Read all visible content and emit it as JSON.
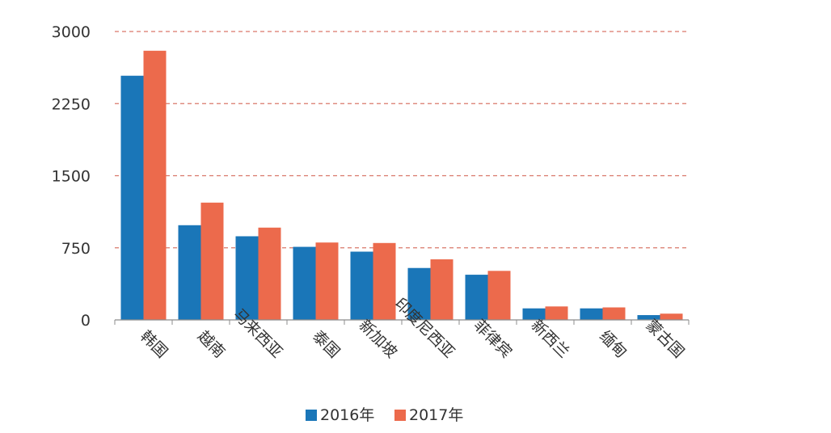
{
  "chart_data": {
    "type": "bar",
    "title": "",
    "xlabel": "",
    "ylabel": "",
    "categories": [
      "韩国",
      "越南",
      "马来西亚",
      "泰国",
      "新加坡",
      "印度尼西亚",
      "菲律宾",
      "新西兰",
      "缅甸",
      "蒙古国"
    ],
    "series": [
      {
        "name": "2016年",
        "color": "#1a76b8",
        "values": [
          2540,
          985,
          870,
          760,
          710,
          540,
          470,
          120,
          120,
          50
        ]
      },
      {
        "name": "2017年",
        "color": "#ec6a4c",
        "values": [
          2800,
          1220,
          960,
          805,
          800,
          630,
          510,
          140,
          130,
          65
        ]
      }
    ],
    "ylim": [
      0,
      3000
    ],
    "yticks": [
      0,
      750,
      1500,
      2250,
      3000
    ],
    "grid": true,
    "legend_position": "bottom"
  }
}
